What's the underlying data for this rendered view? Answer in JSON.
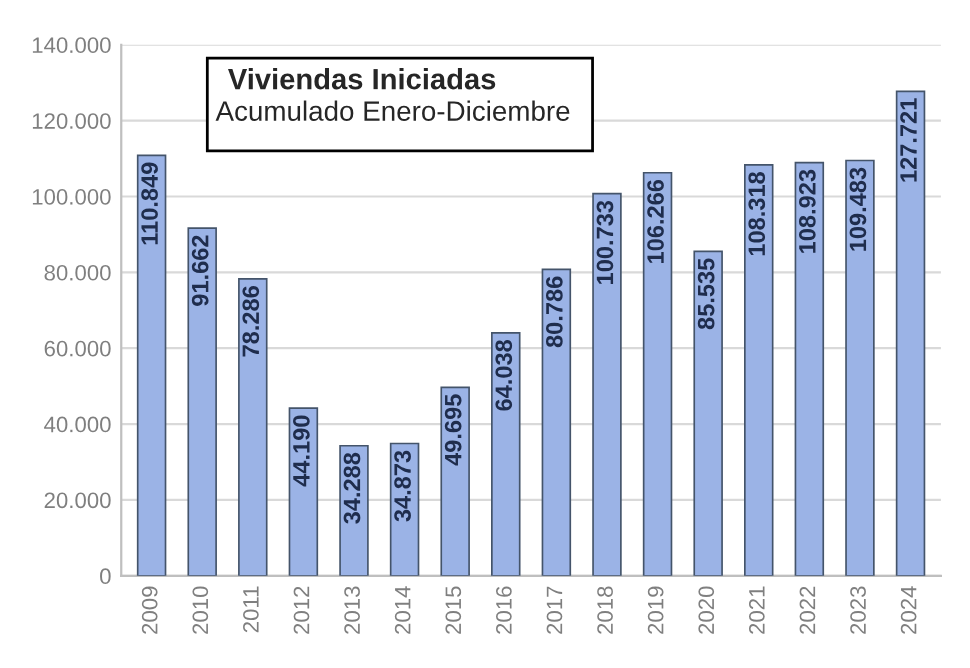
{
  "chart_data": {
    "type": "bar",
    "title": "Viviendas Iniciadas",
    "subtitle": "Acumulado Enero-Diciembre",
    "categories": [
      "2009",
      "2010",
      "2011",
      "2012",
      "2013",
      "2014",
      "2015",
      "2016",
      "2017",
      "2018",
      "2019",
      "2020",
      "2021",
      "2022",
      "2023",
      "2024"
    ],
    "values": [
      110849,
      91662,
      78286,
      44190,
      34288,
      34873,
      49695,
      64038,
      80786,
      100733,
      106266,
      85535,
      108318,
      108923,
      109483,
      127721
    ],
    "value_labels": [
      "110.849",
      "91.662",
      "78.286",
      "44.190",
      "34.288",
      "34.873",
      "49.695",
      "64.038",
      "80.786",
      "100.733",
      "106.266",
      "85.535",
      "108.318",
      "108.923",
      "109.483",
      "127.721"
    ],
    "color": "#9bb3e6",
    "ylim": [
      0,
      140000
    ],
    "yticks": [
      {
        "value": 0,
        "label": "0"
      },
      {
        "value": 20000,
        "label": "20.000"
      },
      {
        "value": 40000,
        "label": "40.000"
      },
      {
        "value": 60000,
        "label": "60.000"
      },
      {
        "value": 80000,
        "label": "80.000"
      },
      {
        "value": 100000,
        "label": "100.000"
      },
      {
        "value": 120000,
        "label": "120.000"
      },
      {
        "value": 140000,
        "label": "140.000"
      }
    ],
    "grid": "y",
    "legend": false
  }
}
